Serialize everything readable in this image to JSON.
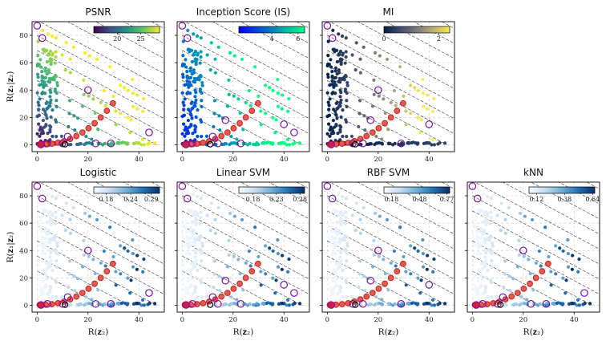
{
  "chart_data": [
    {
      "type": "scatter",
      "title": "PSNR",
      "xlabel": "",
      "ylabel": "R(z1|z2)",
      "ylabel_display": "R(𝐳₁|𝐳₂)",
      "xlim": [
        -2,
        50
      ],
      "ylim": [
        -5,
        90
      ],
      "xticks": [
        "0",
        "20",
        "40"
      ],
      "yticks": [
        "0",
        "20",
        "40",
        "60",
        "80"
      ],
      "grid": true,
      "colorbar": {
        "cmap": "viridis",
        "range": [
          15,
          29
        ],
        "ticks": [
          "20",
          "25"
        ],
        "tick_values": [
          20,
          25
        ]
      },
      "colors": [
        "#440154",
        "#3b528b",
        "#21908c",
        "#5dc863",
        "#fde725"
      ],
      "marker_edge": "#7b0fa8",
      "frontier_edge": "#d4200a"
    },
    {
      "type": "scatter",
      "title": "Inception Score (IS)",
      "xlabel": "",
      "ylabel": "",
      "xlim": [
        -2,
        50
      ],
      "ylim": [
        -5,
        90
      ],
      "xticks": [
        "0",
        "20",
        "40"
      ],
      "yticks": [],
      "grid": true,
      "colorbar": {
        "cmap": "winter",
        "range": [
          1.5,
          6.5
        ],
        "ticks": [
          "4",
          "6"
        ],
        "tick_values": [
          4,
          6
        ]
      },
      "colors": [
        "#0000ff",
        "#0055d4",
        "#00aaaa",
        "#00ff80"
      ],
      "marker_edge": "#7b0fa8",
      "frontier_edge": "#d4200a"
    },
    {
      "type": "scatter",
      "title": "MI",
      "xlabel": "",
      "ylabel": "",
      "xlim": [
        -2,
        50
      ],
      "ylim": [
        -5,
        90
      ],
      "xticks": [
        "0",
        "20",
        "40"
      ],
      "yticks": [],
      "grid": true,
      "colorbar": {
        "cmap": "cividis",
        "range": [
          0,
          2.4
        ],
        "ticks": [
          "0",
          "2"
        ],
        "tick_values": [
          0,
          2
        ]
      },
      "colors": [
        "#00204c",
        "#414d6b",
        "#7c7b78",
        "#bcaf6f",
        "#ffe945"
      ],
      "marker_edge": "#7b0fa8",
      "frontier_edge": "#d4200a"
    },
    {
      "type": "scatter",
      "title": "Logistic",
      "xlabel": "R(z2)",
      "xlabel_display": "R(𝐳₂)",
      "ylabel": "R(z1|z2)",
      "ylabel_display": "R(𝐳₁|𝐳₂)",
      "xlim": [
        -2,
        50
      ],
      "ylim": [
        -5,
        90
      ],
      "xticks": [
        "0",
        "20",
        "40"
      ],
      "yticks": [
        "0",
        "20",
        "40",
        "60",
        "80"
      ],
      "grid": true,
      "colorbar": {
        "cmap": "Blues",
        "range": [
          0.15,
          0.31
        ],
        "ticks": [
          "0.18",
          "0.24",
          "0.29"
        ],
        "tick_values": [
          0.18,
          0.24,
          0.29
        ]
      },
      "colors": [
        "#f7fbff",
        "#c6dbef",
        "#6baed6",
        "#2171b5",
        "#08306b"
      ],
      "marker_edge": "#7b0fa8",
      "frontier_edge": "#d4200a"
    },
    {
      "type": "scatter",
      "title": "Linear SVM",
      "xlabel": "R(z2)",
      "xlabel_display": "R(𝐳₂)",
      "ylabel": "",
      "xlim": [
        -2,
        50
      ],
      "ylim": [
        -5,
        90
      ],
      "xticks": [
        "0",
        "20",
        "40"
      ],
      "yticks": [],
      "grid": true,
      "colorbar": {
        "cmap": "Blues",
        "range": [
          0.15,
          0.29
        ],
        "ticks": [
          "0.18",
          "0.23",
          "0.28"
        ],
        "tick_values": [
          0.18,
          0.23,
          0.28
        ]
      },
      "colors": [
        "#f7fbff",
        "#c6dbef",
        "#6baed6",
        "#2171b5",
        "#08306b"
      ],
      "marker_edge": "#7b0fa8",
      "frontier_edge": "#d4200a"
    },
    {
      "type": "scatter",
      "title": "RBF SVM",
      "xlabel": "R(z2)",
      "xlabel_display": "R(𝐳₂)",
      "ylabel": "",
      "xlim": [
        -2,
        50
      ],
      "ylim": [
        -5,
        90
      ],
      "xticks": [
        "0",
        "20",
        "40"
      ],
      "yticks": [],
      "grid": true,
      "colorbar": {
        "cmap": "Blues",
        "range": [
          0.1,
          0.8
        ],
        "ticks": [
          "0.18",
          "0.48",
          "0.77"
        ],
        "tick_values": [
          0.18,
          0.48,
          0.77
        ]
      },
      "colors": [
        "#f7fbff",
        "#c6dbef",
        "#6baed6",
        "#2171b5",
        "#08306b"
      ],
      "marker_edge": "#7b0fa8",
      "frontier_edge": "#d4200a"
    },
    {
      "type": "scatter",
      "title": "kNN",
      "xlabel": "R(z2)",
      "xlabel_display": "R(𝐳₂)",
      "ylabel": "",
      "xlim": [
        -2,
        50
      ],
      "ylim": [
        -5,
        90
      ],
      "xticks": [
        "0",
        "20",
        "40"
      ],
      "yticks": [],
      "grid": true,
      "colorbar": {
        "cmap": "Blues",
        "range": [
          0.05,
          0.66
        ],
        "ticks": [
          "0.12",
          "0.38",
          "0.64"
        ],
        "tick_values": [
          0.12,
          0.38,
          0.64
        ]
      },
      "colors": [
        "#f7fbff",
        "#c6dbef",
        "#6baed6",
        "#2171b5",
        "#08306b"
      ],
      "marker_edge": "#7b0fa8",
      "frontier_edge": "#d4200a"
    }
  ]
}
